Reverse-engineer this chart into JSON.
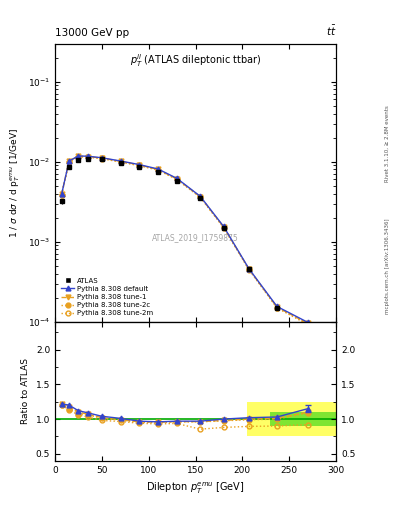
{
  "title_top": "13000 GeV pp",
  "title_right": "tt",
  "plot_title": "p_{T}^{ll} (ATLAS dileptonic ttbar)",
  "watermark": "ATLAS_2019_I1759875",
  "right_label": "Rivet 3.1.10, ≥ 2.8M events",
  "right_label2": "mcplots.cern.ch [arXiv:1306.3436]",
  "xlabel": "Dilepton p_{T}^{emu} [GeV]",
  "ylabel": "1 / σ dσ / d p_{T}^{emu} [1/GeV]",
  "ylabel_ratio": "Ratio to ATLAS",
  "xlim": [
    0,
    300
  ],
  "ylim_main": [
    0.0001,
    0.3
  ],
  "ylim_ratio": [
    0.4,
    2.4
  ],
  "atlas_x": [
    7,
    15,
    25,
    35,
    50,
    70,
    90,
    110,
    130,
    155,
    180,
    207,
    237,
    270
  ],
  "atlas_y": [
    0.0032,
    0.0085,
    0.0105,
    0.0107,
    0.0107,
    0.0095,
    0.0085,
    0.0075,
    0.0058,
    0.0035,
    0.0015,
    0.00045,
    0.00015,
    8.5e-05
  ],
  "atlas_yerr": [
    0.0002,
    0.0003,
    0.0003,
    0.0002,
    0.0002,
    0.00015,
    0.00015,
    0.00015,
    0.00015,
    8e-05,
    4e-05,
    1.5e-05,
    6e-06,
    3e-06
  ],
  "mc_x": [
    7,
    15,
    25,
    35,
    50,
    70,
    90,
    110,
    130,
    155,
    180,
    207,
    237,
    270
  ],
  "pythia_default_y": [
    0.0039,
    0.0102,
    0.0118,
    0.0117,
    0.0112,
    0.0102,
    0.0092,
    0.0081,
    0.0062,
    0.0037,
    0.00155,
    0.00046,
    0.000155,
    9.8e-05
  ],
  "pythia_tune1_y": [
    0.0039,
    0.0102,
    0.0117,
    0.0116,
    0.0111,
    0.0101,
    0.0091,
    0.008,
    0.0061,
    0.00365,
    0.00153,
    0.000455,
    0.000152,
    9.5e-05
  ],
  "pythia_tune2c_y": [
    0.00385,
    0.01,
    0.0116,
    0.0115,
    0.011,
    0.01,
    0.009,
    0.0079,
    0.00605,
    0.00362,
    0.00151,
    0.00045,
    0.00015,
    9.3e-05
  ],
  "pythia_tune2m_y": [
    0.00385,
    0.01,
    0.0115,
    0.0114,
    0.0109,
    0.0099,
    0.0089,
    0.00785,
    0.006,
    0.0036,
    0.0015,
    0.000448,
    0.000149,
    9.2e-05
  ],
  "ratio_default": [
    1.22,
    1.2,
    1.12,
    1.09,
    1.04,
    1.01,
    0.97,
    0.96,
    0.97,
    0.97,
    1.0,
    1.02,
    1.03,
    1.15
  ],
  "ratio_tune1": [
    1.22,
    1.18,
    1.1,
    1.07,
    1.02,
    0.99,
    0.96,
    0.955,
    0.963,
    0.963,
    0.98,
    1.0,
    1.01,
    1.1
  ],
  "ratio_tune2c": [
    1.2,
    1.15,
    1.08,
    1.06,
    1.01,
    0.985,
    0.955,
    0.95,
    0.96,
    0.96,
    0.975,
    0.99,
    0.999,
    1.09
  ],
  "ratio_tune2m": [
    1.2,
    1.13,
    1.06,
    1.03,
    0.98,
    0.965,
    0.94,
    0.93,
    0.937,
    0.855,
    0.88,
    0.895,
    0.9,
    0.92
  ],
  "ratio_default_yerr": [
    0.0,
    0.0,
    0.0,
    0.0,
    0.0,
    0.0,
    0.0,
    0.0,
    0.0,
    0.0,
    0.0,
    0.0,
    0.0,
    0.05
  ],
  "color_atlas": "#000000",
  "color_default": "#3344cc",
  "color_mc": "#e8a020",
  "band_yellow_xstart": 205,
  "band_yellow_ymin": 0.75,
  "band_yellow_ymax": 1.25,
  "band_green_xstart": 230,
  "band_green_ymin": 0.9,
  "band_green_ymax": 1.1,
  "legend_labels": [
    "ATLAS",
    "Pythia 8.308 default",
    "Pythia 8.308 tune-1",
    "Pythia 8.308 tune-2c",
    "Pythia 8.308 tune-2m"
  ]
}
